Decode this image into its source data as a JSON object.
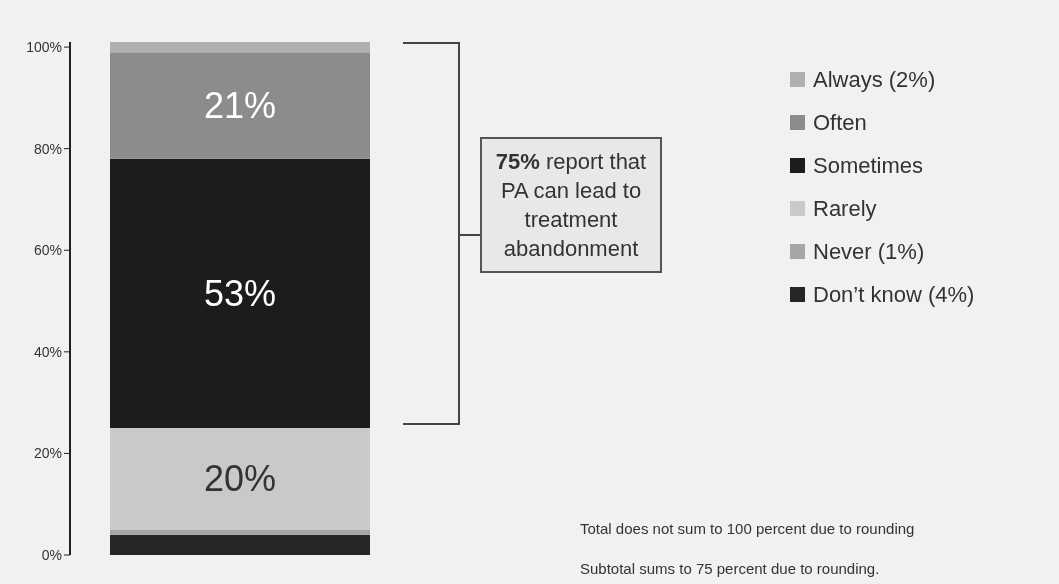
{
  "chart_data": {
    "type": "bar",
    "stacked": true,
    "categories": [
      null
    ],
    "series": [
      {
        "name": "Don’t know (4%)",
        "color": "#262626",
        "values": [
          4
        ]
      },
      {
        "name": "Never (1%)",
        "color": "#a6a6a6",
        "values": [
          1
        ]
      },
      {
        "name": "Rarely",
        "color": "#c9c9c9",
        "values": [
          20
        ],
        "value_labels": [
          "20%"
        ]
      },
      {
        "name": "Sometimes",
        "color": "#1c1c1c",
        "values": [
          53
        ],
        "value_labels": [
          "53%"
        ]
      },
      {
        "name": "Often",
        "color": "#8c8c8c",
        "values": [
          21
        ],
        "value_labels": [
          "21%"
        ]
      },
      {
        "name": "Always (2%)",
        "color": "#b0b0b0",
        "values": [
          2
        ]
      }
    ],
    "ylim": [
      0,
      101
    ],
    "yticks": [
      {
        "value": 0,
        "label": "0%"
      },
      {
        "value": 20,
        "label": "20%"
      },
      {
        "value": 40,
        "label": "40%"
      },
      {
        "value": 60,
        "label": "60%"
      },
      {
        "value": 80,
        "label": "80%"
      },
      {
        "value": 100,
        "label": "100%"
      }
    ],
    "grid": false,
    "legend": "right",
    "annotations": [
      "75% report that PA can lead to treatment abandonment",
      "Total does not sum to 100 percent due to rounding",
      "Subtotal sums to 75 percent due to rounding."
    ]
  }
}
